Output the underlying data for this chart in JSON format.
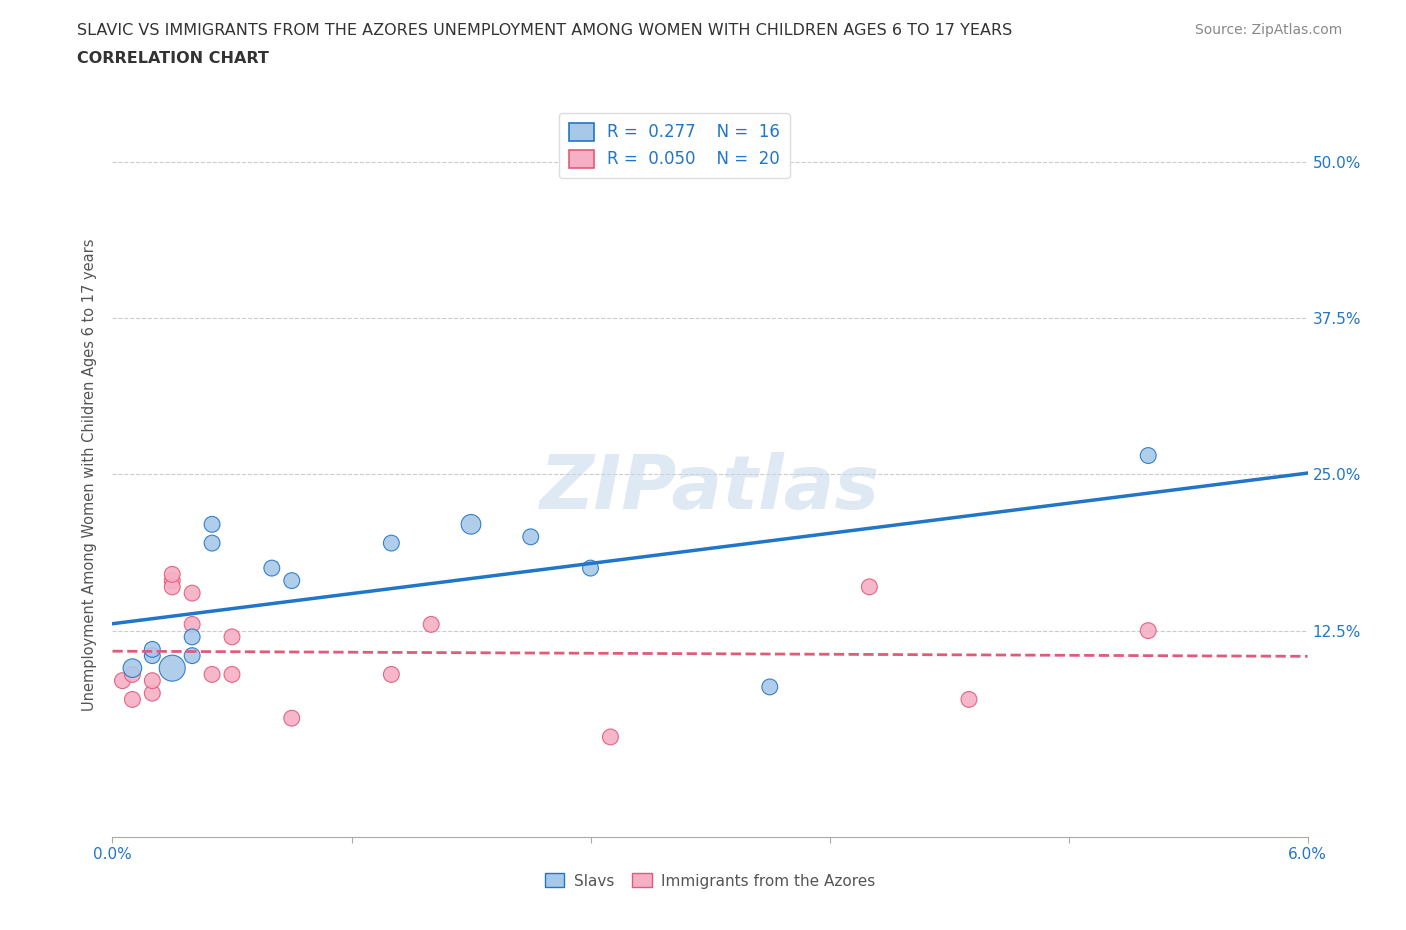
{
  "title_line1": "SLAVIC VS IMMIGRANTS FROM THE AZORES UNEMPLOYMENT AMONG WOMEN WITH CHILDREN AGES 6 TO 17 YEARS",
  "title_line2": "CORRELATION CHART",
  "source": "Source: ZipAtlas.com",
  "ylabel": "Unemployment Among Women with Children Ages 6 to 17 years",
  "xlim": [
    0.0,
    0.06
  ],
  "ylim": [
    -0.04,
    0.54
  ],
  "yticks": [
    0.0,
    0.125,
    0.25,
    0.375,
    0.5
  ],
  "ytick_labels_right": [
    "",
    "12.5%",
    "25.0%",
    "37.5%",
    "50.0%"
  ],
  "xticks": [
    0.0,
    0.012,
    0.024,
    0.036,
    0.048,
    0.06
  ],
  "xtick_labels": [
    "0.0%",
    "",
    "",
    "",
    "",
    "6.0%"
  ],
  "slavs_color": "#a8c8e8",
  "azores_color": "#f5b0c5",
  "slavs_line_color": "#2176c7",
  "azores_line_color": "#e05a7a",
  "background_color": "#ffffff",
  "watermark": "ZIPatlas",
  "slavs_R": 0.277,
  "slavs_N": 16,
  "azores_R": 0.05,
  "azores_N": 20,
  "slavs_x": [
    0.001,
    0.002,
    0.002,
    0.003,
    0.004,
    0.004,
    0.005,
    0.005,
    0.008,
    0.009,
    0.014,
    0.018,
    0.021,
    0.024,
    0.033,
    0.052
  ],
  "slavs_y": [
    0.095,
    0.105,
    0.11,
    0.095,
    0.105,
    0.12,
    0.195,
    0.21,
    0.175,
    0.165,
    0.195,
    0.21,
    0.2,
    0.175,
    0.08,
    0.265
  ],
  "slavs_sizes": [
    180,
    130,
    130,
    350,
    130,
    130,
    130,
    130,
    130,
    130,
    130,
    200,
    130,
    130,
    130,
    130
  ],
  "azores_x": [
    0.0005,
    0.001,
    0.001,
    0.002,
    0.002,
    0.003,
    0.003,
    0.003,
    0.004,
    0.004,
    0.005,
    0.006,
    0.006,
    0.009,
    0.014,
    0.016,
    0.025,
    0.038,
    0.043,
    0.052
  ],
  "azores_y": [
    0.085,
    0.07,
    0.09,
    0.075,
    0.085,
    0.165,
    0.16,
    0.17,
    0.155,
    0.13,
    0.09,
    0.12,
    0.09,
    0.055,
    0.09,
    0.13,
    0.04,
    0.16,
    0.07,
    0.125
  ],
  "azores_sizes": [
    130,
    130,
    130,
    130,
    130,
    130,
    130,
    130,
    130,
    130,
    130,
    130,
    130,
    130,
    130,
    130,
    130,
    130,
    130,
    130
  ],
  "grid_color": "#cccccc",
  "tick_color": "#aaaaaa",
  "label_color": "#555555",
  "right_label_color": "#2176c7"
}
